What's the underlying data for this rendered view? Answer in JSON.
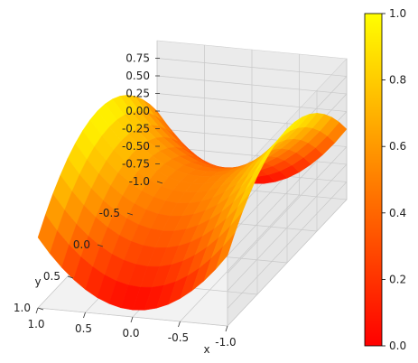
{
  "chart_data": {
    "type": "surface",
    "title": "",
    "function": "z = x^2 - y^2",
    "xlabel": "x",
    "ylabel": "y",
    "zlabel": "",
    "x_ticks": [
      "1.0",
      "0.5",
      "0.0",
      "-0.5",
      "-1.0"
    ],
    "y_ticks": [
      "-1.0",
      "-0.5",
      "0.0",
      "0.5",
      "1.0"
    ],
    "z_ticks": [
      "0.75",
      "0.50",
      "0.25",
      "0.00",
      "-0.25",
      "-0.50",
      "-0.75"
    ],
    "xlim": [
      -1,
      1
    ],
    "ylim": [
      -1,
      1
    ],
    "zlim": [
      -1,
      1
    ],
    "colormap": "autumn",
    "colorbar": {
      "ticks": [
        "0.0",
        "0.2",
        "0.4",
        "0.6",
        "0.8",
        "1.0"
      ],
      "range": [
        0,
        1
      ],
      "colors": [
        "#ff0000",
        "#ffff00"
      ]
    },
    "grid": true
  }
}
